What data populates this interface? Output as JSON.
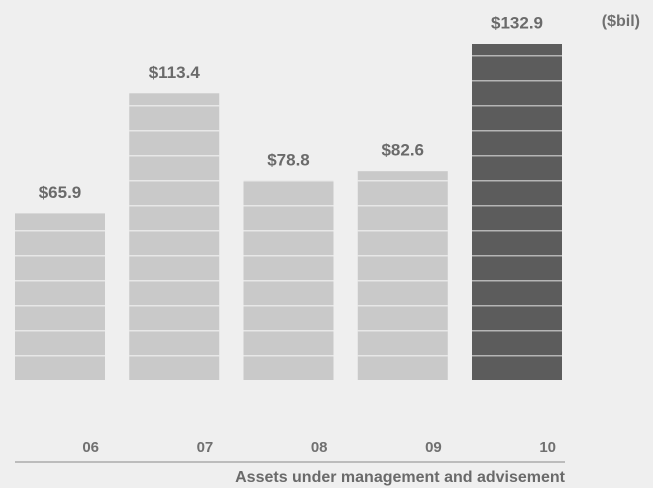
{
  "chart_data": {
    "type": "bar",
    "unit_label": "($bil)",
    "x_label": "Assets under management and advisement",
    "categories": [
      "06",
      "07",
      "08",
      "09",
      "10"
    ],
    "values": [
      65.9,
      113.4,
      78.8,
      82.6,
      132.9
    ],
    "value_labels": [
      "$65.9",
      "$113.4",
      "$78.8",
      "$82.6",
      "$132.9"
    ],
    "colors": [
      "#c9c9c9",
      "#c9c9c9",
      "#c9c9c9",
      "#c9c9c9",
      "#5c5c5c"
    ]
  }
}
